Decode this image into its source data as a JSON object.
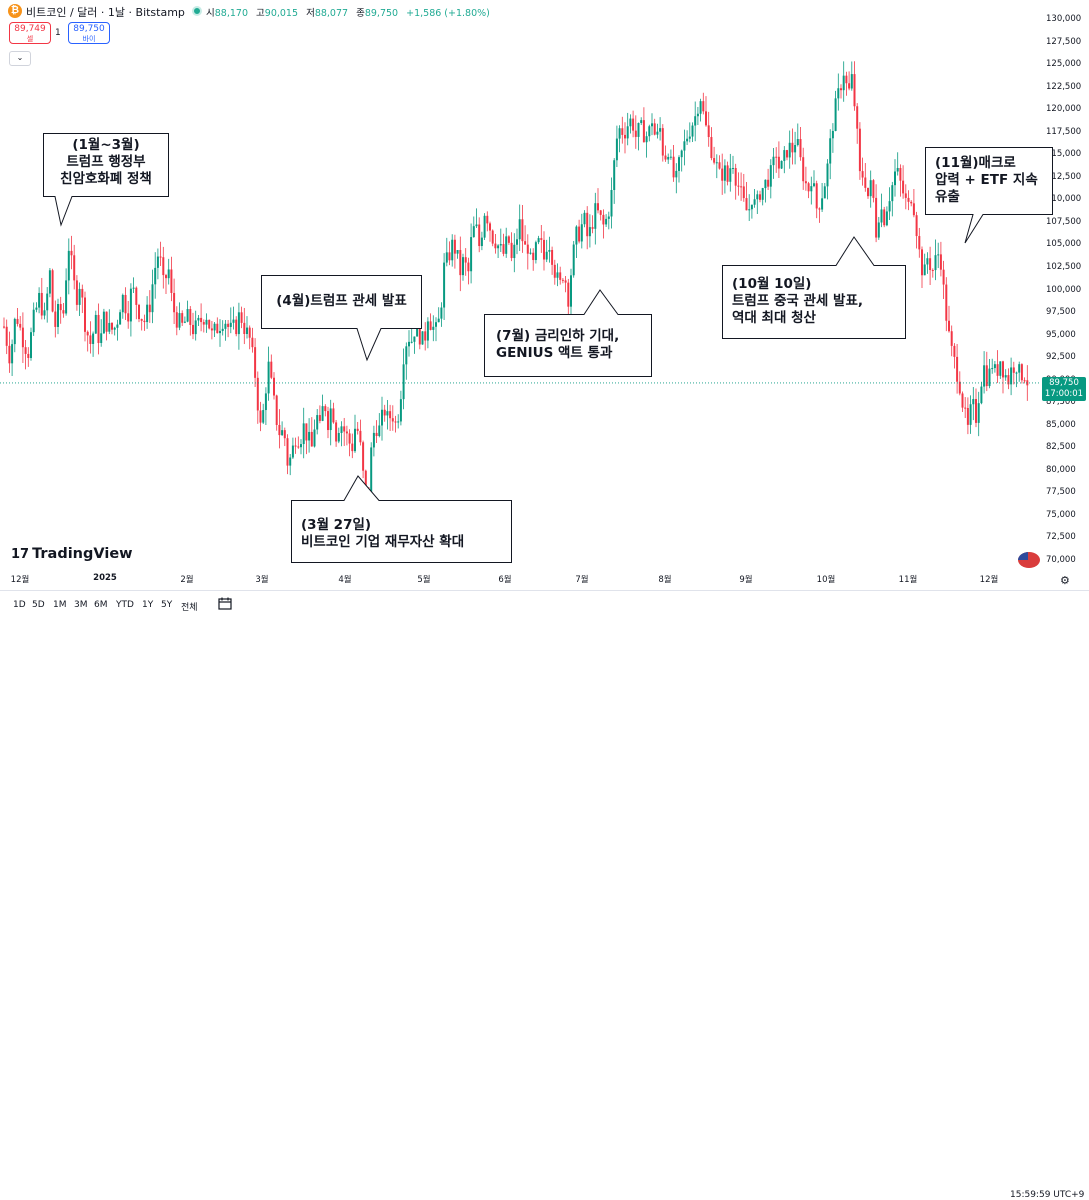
{
  "header": {
    "logo_glyph": "₿",
    "symbol": "비트코인 / 달러 · 1날 · Bitstamp",
    "ohlc": [
      {
        "label": "시",
        "value": "88,170"
      },
      {
        "label": "고",
        "value": "90,015"
      },
      {
        "label": "저",
        "value": "88,077"
      },
      {
        "label": "종",
        "value": "89,750"
      }
    ],
    "change": "+1,586 (+1.80%)",
    "sell_price": "89,749",
    "sell_label": "셀",
    "spread": "1",
    "buy_price": "89,750",
    "buy_label": "바이",
    "collapse_glyph": "⌄"
  },
  "chart_data": {
    "type": "candlestick",
    "symbol": "BTC/USD",
    "interval": "1D",
    "ylim": [
      70000,
      130000
    ],
    "y_ticks": [
      "130,000",
      "127,500",
      "125,000",
      "122,500",
      "120,000",
      "117,500",
      "115,000",
      "112,500",
      "110,000",
      "107,500",
      "105,000",
      "102,500",
      "100,000",
      "97,500",
      "95,000",
      "92,500",
      "90,000",
      "87,500",
      "85,000",
      "82,500",
      "80,000",
      "77,500",
      "75,000",
      "72,500",
      "70,000"
    ],
    "x_ticks": [
      "12월",
      "2025",
      "2월",
      "3월",
      "4월",
      "5월",
      "6월",
      "7월",
      "8월",
      "9월",
      "10월",
      "11월",
      "12월"
    ],
    "last_price": "89,750",
    "countdown": "17:00:01",
    "close_path": [
      [
        0,
        96000
      ],
      [
        6,
        92500
      ],
      [
        12,
        97500
      ],
      [
        18,
        95000
      ],
      [
        24,
        93000
      ],
      [
        30,
        97000
      ],
      [
        36,
        99500
      ],
      [
        40,
        96500
      ],
      [
        46,
        102000
      ],
      [
        50,
        95500
      ],
      [
        55,
        98000
      ],
      [
        60,
        97500
      ],
      [
        64,
        105500
      ],
      [
        68,
        102500
      ],
      [
        72,
        99000
      ],
      [
        76,
        101000
      ],
      [
        80,
        97000
      ],
      [
        86,
        94000
      ],
      [
        92,
        96500
      ],
      [
        96,
        94000
      ],
      [
        100,
        97000
      ],
      [
        106,
        95500
      ],
      [
        112,
        96000
      ],
      [
        118,
        99500
      ],
      [
        124,
        97500
      ],
      [
        128,
        100500
      ],
      [
        134,
        98000
      ],
      [
        140,
        96500
      ],
      [
        146,
        98500
      ],
      [
        150,
        102000
      ],
      [
        155,
        104500
      ],
      [
        160,
        100000
      ],
      [
        164,
        103000
      ],
      [
        168,
        98500
      ],
      [
        172,
        97000
      ],
      [
        178,
        96000
      ],
      [
        184,
        97000
      ],
      [
        190,
        95500
      ],
      [
        196,
        96500
      ],
      [
        202,
        97500
      ],
      [
        208,
        95000
      ],
      [
        214,
        96000
      ],
      [
        220,
        97000
      ],
      [
        226,
        95500
      ],
      [
        232,
        96000
      ],
      [
        236,
        97500
      ],
      [
        240,
        96000
      ],
      [
        246,
        94500
      ],
      [
        252,
        90000
      ],
      [
        256,
        84500
      ],
      [
        260,
        87000
      ],
      [
        264,
        92000
      ],
      [
        268,
        89000
      ],
      [
        272,
        86000
      ],
      [
        276,
        84000
      ],
      [
        280,
        84500
      ],
      [
        284,
        80500
      ],
      [
        288,
        82000
      ],
      [
        292,
        84000
      ],
      [
        296,
        83500
      ],
      [
        300,
        85000
      ],
      [
        304,
        83500
      ],
      [
        308,
        82500
      ],
      [
        312,
        86500
      ],
      [
        316,
        84500
      ],
      [
        320,
        88000
      ],
      [
        324,
        85500
      ],
      [
        328,
        87500
      ],
      [
        332,
        84000
      ],
      [
        336,
        85500
      ],
      [
        340,
        84500
      ],
      [
        344,
        83500
      ],
      [
        348,
        82500
      ],
      [
        352,
        85500
      ],
      [
        356,
        83000
      ],
      [
        360,
        78500
      ],
      [
        364,
        76500
      ],
      [
        368,
        83500
      ],
      [
        372,
        85000
      ],
      [
        376,
        84500
      ],
      [
        380,
        87000
      ],
      [
        384,
        85500
      ],
      [
        388,
        86500
      ],
      [
        392,
        85000
      ],
      [
        396,
        87500
      ],
      [
        400,
        93500
      ],
      [
        404,
        95000
      ],
      [
        408,
        94500
      ],
      [
        412,
        96500
      ],
      [
        416,
        95000
      ],
      [
        420,
        94000
      ],
      [
        424,
        97500
      ],
      [
        428,
        96000
      ],
      [
        432,
        95500
      ],
      [
        436,
        97000
      ],
      [
        440,
        102500
      ],
      [
        444,
        103500
      ],
      [
        448,
        105000
      ],
      [
        452,
        104500
      ],
      [
        456,
        102000
      ],
      [
        460,
        103500
      ],
      [
        464,
        101500
      ],
      [
        468,
        106500
      ],
      [
        472,
        107000
      ],
      [
        476,
        104500
      ],
      [
        480,
        109000
      ],
      [
        484,
        108000
      ],
      [
        488,
        106000
      ],
      [
        492,
        105500
      ],
      [
        496,
        104500
      ],
      [
        500,
        104000
      ],
      [
        504,
        106000
      ],
      [
        508,
        103000
      ],
      [
        512,
        105500
      ],
      [
        516,
        107500
      ],
      [
        520,
        104500
      ],
      [
        524,
        105000
      ],
      [
        528,
        102000
      ],
      [
        532,
        104500
      ],
      [
        536,
        105500
      ],
      [
        540,
        103500
      ],
      [
        544,
        106000
      ],
      [
        548,
        104000
      ],
      [
        552,
        101500
      ],
      [
        556,
        100500
      ],
      [
        560,
        102500
      ],
      [
        564,
        99000
      ],
      [
        568,
        103000
      ],
      [
        572,
        106000
      ],
      [
        576,
        106500
      ],
      [
        580,
        108000
      ],
      [
        584,
        105500
      ],
      [
        588,
        107500
      ],
      [
        592,
        109000
      ],
      [
        596,
        108000
      ],
      [
        600,
        107000
      ],
      [
        604,
        108500
      ],
      [
        608,
        111000
      ],
      [
        612,
        116500
      ],
      [
        616,
        118000
      ],
      [
        620,
        117500
      ],
      [
        624,
        118500
      ],
      [
        628,
        119000
      ],
      [
        632,
        117000
      ],
      [
        636,
        118000
      ],
      [
        640,
        117500
      ],
      [
        644,
        117000
      ],
      [
        648,
        119000
      ],
      [
        652,
        116500
      ],
      [
        656,
        118000
      ],
      [
        660,
        114500
      ],
      [
        664,
        116000
      ],
      [
        668,
        113000
      ],
      [
        672,
        112000
      ],
      [
        676,
        114500
      ],
      [
        680,
        116000
      ],
      [
        684,
        117500
      ],
      [
        688,
        118500
      ],
      [
        692,
        119500
      ],
      [
        696,
        122000
      ],
      [
        700,
        119000
      ],
      [
        704,
        117000
      ],
      [
        708,
        115500
      ],
      [
        712,
        114000
      ],
      [
        716,
        112500
      ],
      [
        720,
        113500
      ],
      [
        724,
        112000
      ],
      [
        728,
        115000
      ],
      [
        732,
        112500
      ],
      [
        736,
        111000
      ],
      [
        740,
        109500
      ],
      [
        744,
        108500
      ],
      [
        748,
        110500
      ],
      [
        752,
        109000
      ],
      [
        756,
        111000
      ],
      [
        760,
        111500
      ],
      [
        764,
        112500
      ],
      [
        768,
        113000
      ],
      [
        772,
        115500
      ],
      [
        776,
        113000
      ],
      [
        780,
        114500
      ],
      [
        784,
        116000
      ],
      [
        788,
        115500
      ],
      [
        792,
        117000
      ],
      [
        796,
        114500
      ],
      [
        800,
        112500
      ],
      [
        804,
        111000
      ],
      [
        808,
        113000
      ],
      [
        812,
        109000
      ],
      [
        816,
        110000
      ],
      [
        820,
        111500
      ],
      [
        824,
        114000
      ],
      [
        828,
        118000
      ],
      [
        832,
        120500
      ],
      [
        836,
        122500
      ],
      [
        840,
        124500
      ],
      [
        844,
        121500
      ],
      [
        848,
        123500
      ],
      [
        852,
        119000
      ],
      [
        856,
        112500
      ],
      [
        860,
        113000
      ],
      [
        864,
        110500
      ],
      [
        868,
        112000
      ],
      [
        872,
        106500
      ],
      [
        876,
        109500
      ],
      [
        880,
        108000
      ],
      [
        884,
        110000
      ],
      [
        888,
        111500
      ],
      [
        892,
        113500
      ],
      [
        896,
        112000
      ],
      [
        900,
        110500
      ],
      [
        904,
        109000
      ],
      [
        908,
        111000
      ],
      [
        912,
        107500
      ],
      [
        916,
        103500
      ],
      [
        920,
        101500
      ],
      [
        924,
        104000
      ],
      [
        928,
        102000
      ],
      [
        932,
        103500
      ],
      [
        936,
        104500
      ],
      [
        940,
        99500
      ],
      [
        944,
        95500
      ],
      [
        948,
        93000
      ],
      [
        952,
        91500
      ],
      [
        956,
        89500
      ],
      [
        960,
        86500
      ],
      [
        964,
        84500
      ],
      [
        968,
        87500
      ],
      [
        972,
        86000
      ],
      [
        976,
        89500
      ],
      [
        980,
        91500
      ],
      [
        984,
        90000
      ],
      [
        988,
        92000
      ],
      [
        992,
        90500
      ],
      [
        996,
        92500
      ],
      [
        1000,
        91000
      ],
      [
        1004,
        90000
      ],
      [
        1008,
        91500
      ],
      [
        1012,
        92000
      ],
      [
        1016,
        90500
      ],
      [
        1020,
        91000
      ],
      [
        1024,
        89750
      ]
    ],
    "annotations": [
      {
        "lines": [
          "(1월~3월)",
          "트럼프 행정부",
          "친암호화폐 정책"
        ]
      },
      {
        "lines": [
          "(4월)트럼프 관세 발표"
        ]
      },
      {
        "lines": [
          "(3월 27일)",
          "비트코인 기업 재무자산 확대"
        ]
      },
      {
        "lines": [
          "(7월) 금리인하 기대,",
          "GENIUS 액트 통과"
        ]
      },
      {
        "lines": [
          "(10월 10일)",
          "트럼프 중국 관세 발표,",
          "역대 최대 청산"
        ]
      },
      {
        "lines": [
          "(11월)매크로",
          "압력 + ETF 지속",
          "유출"
        ]
      }
    ],
    "colors": {
      "up": "#089981",
      "down": "#f23645",
      "last_line": "#089981"
    }
  },
  "branding": {
    "mark": "17",
    "name": "TradingView"
  },
  "toolbar": {
    "timeframes": [
      "1D",
      "5D",
      "1M",
      "3M",
      "6M",
      "YTD",
      "1Y",
      "5Y",
      "전체"
    ],
    "clock": "15:59:59 UTC+9"
  }
}
